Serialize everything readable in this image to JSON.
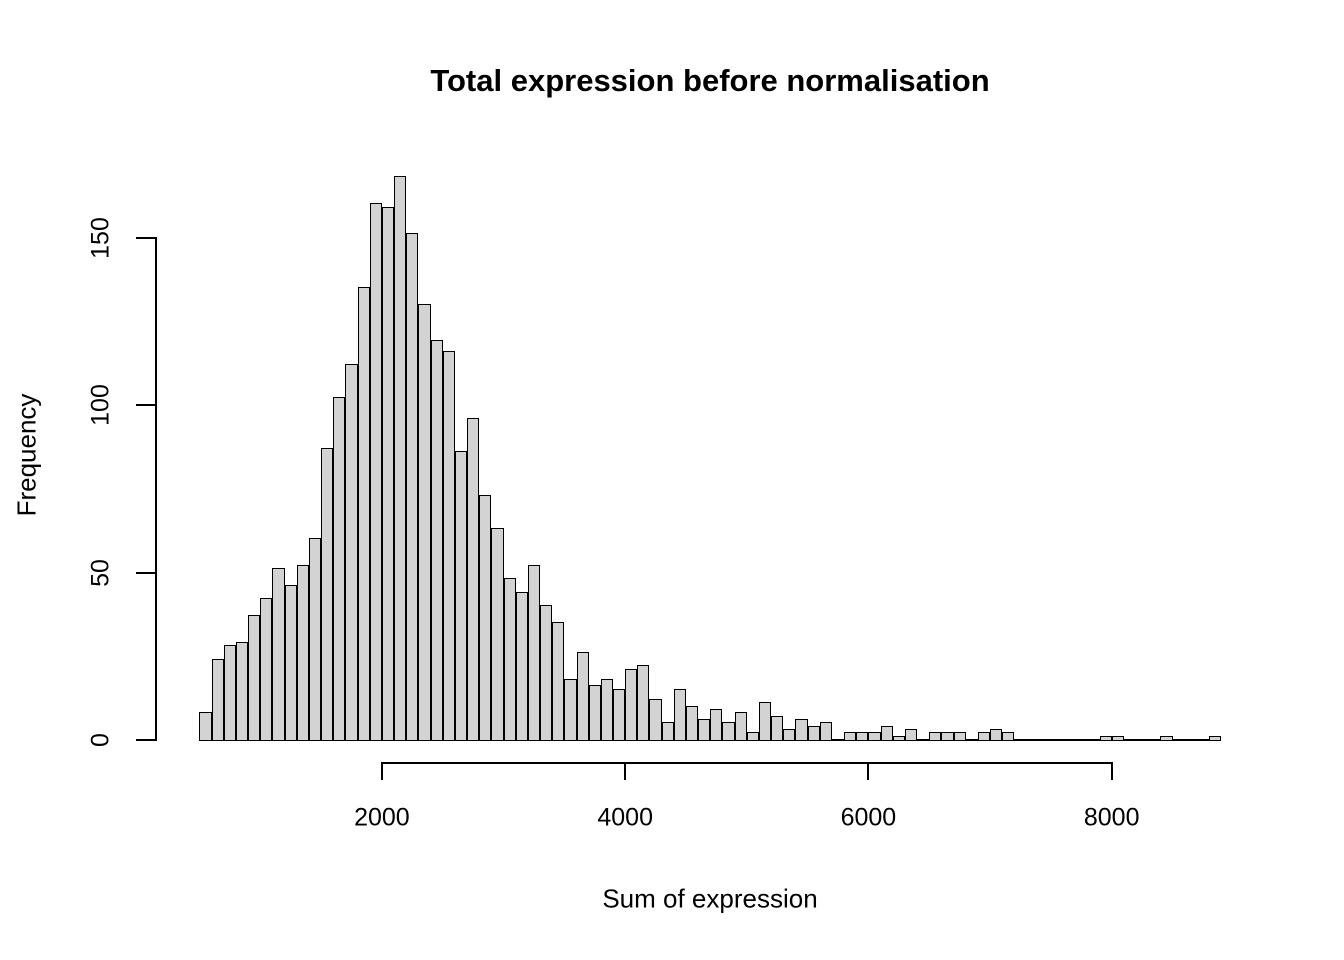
{
  "figure": {
    "title": "Total expression before normalisation",
    "xlabel": "Sum of expression",
    "ylabel": "Frequency"
  },
  "chart_data": {
    "type": "bar",
    "subtype": "histogram",
    "title": "Total expression before normalisation",
    "xlabel": "Sum of expression",
    "ylabel": "Frequency",
    "bin_start": 500,
    "bin_width": 100,
    "counts": [
      8,
      24,
      28,
      29,
      37,
      42,
      51,
      46,
      52,
      60,
      87,
      102,
      112,
      135,
      160,
      159,
      168,
      151,
      130,
      119,
      116,
      86,
      96,
      73,
      63,
      48,
      44,
      52,
      40,
      35,
      18,
      26,
      16,
      18,
      15,
      21,
      22,
      12,
      5,
      15,
      10,
      6,
      9,
      5,
      8,
      2,
      11,
      7,
      3,
      6,
      4,
      5,
      0,
      2,
      2,
      2,
      4,
      1,
      3,
      0,
      2,
      2,
      2,
      0,
      2,
      3,
      2,
      0,
      0,
      0,
      0,
      0,
      0,
      0,
      1,
      1,
      0,
      0,
      0,
      1,
      0,
      0,
      0,
      1
    ],
    "x_ticks": [
      2000,
      4000,
      6000,
      8000
    ],
    "y_ticks": [
      0,
      50,
      100,
      150
    ],
    "xlim": [
      500,
      8900
    ],
    "ylim": [
      0,
      168
    ],
    "legend": null,
    "grid": false,
    "bar_fill": "#d3d3d3",
    "bar_stroke": "#000000",
    "axis_color": "#000000",
    "background": "#ffffff"
  }
}
